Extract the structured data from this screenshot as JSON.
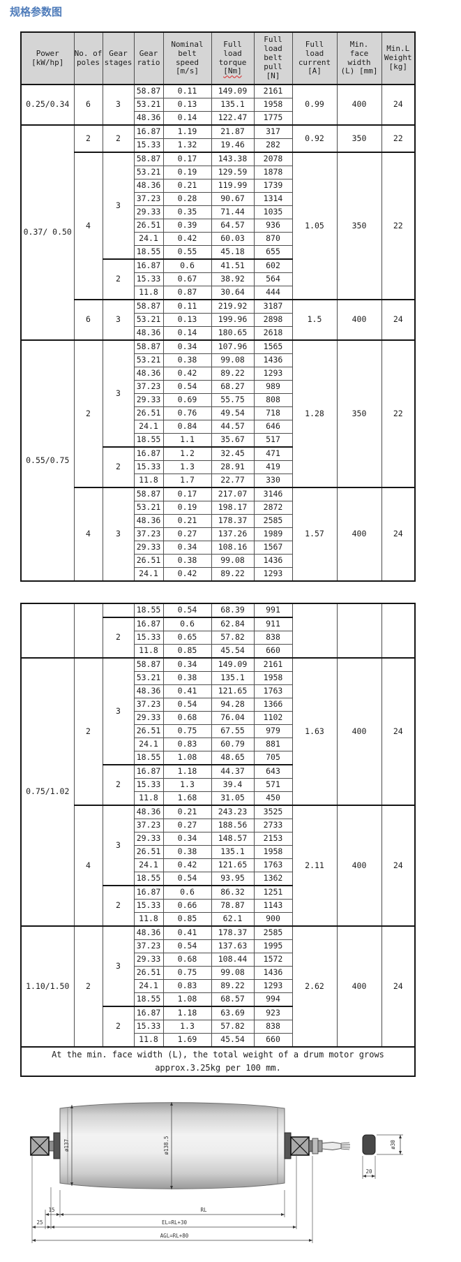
{
  "page": {
    "title": "规格参数图"
  },
  "colors": {
    "title": "#4f7cba",
    "header_bg": "#d5d5d5",
    "border": "#4d4d4d",
    "border_heavy": "#151515",
    "wavy_underline": "#d83a3a"
  },
  "columns": [
    {
      "key": "power",
      "lines": [
        "Power",
        "[kW/hp]"
      ]
    },
    {
      "key": "poles",
      "lines": [
        "No. of",
        "poles"
      ]
    },
    {
      "key": "stages",
      "lines": [
        "Gear",
        "stages"
      ]
    },
    {
      "key": "ratio",
      "lines": [
        "Gear",
        "ratio"
      ]
    },
    {
      "key": "speed",
      "lines": [
        "Nominal",
        "belt",
        "speed",
        "[m/s]"
      ]
    },
    {
      "key": "torque",
      "lines": [
        "Full",
        "load",
        "torque",
        "[Nm]"
      ],
      "wavy_line_index": 3
    },
    {
      "key": "pull",
      "lines": [
        "Full",
        "load",
        "belt",
        "pull",
        "[N]"
      ]
    },
    {
      "key": "current",
      "lines": [
        "Full",
        "load",
        "current",
        "[A]"
      ]
    },
    {
      "key": "face_width",
      "lines": [
        "Min.",
        "face",
        "width",
        "(L) [mm]"
      ]
    },
    {
      "key": "weight",
      "lines": [
        "Min.L",
        "Weight",
        "[kg]"
      ]
    }
  ],
  "tables": [
    {
      "name": "spec-table-1",
      "show_header": true,
      "groups": [
        {
          "power": "0.25/0.34",
          "pole_groups": [
            {
              "poles": "6",
              "current": "0.99",
              "face_width": "400",
              "weight": "24",
              "stage_groups": [
                {
                  "stages": "3",
                  "rows": [
                    [
                      "58.87",
                      "0.11",
                      "149.09",
                      "2161"
                    ],
                    [
                      "53.21",
                      "0.13",
                      "135.1",
                      "1958"
                    ],
                    [
                      "48.36",
                      "0.14",
                      "122.47",
                      "1775"
                    ]
                  ]
                }
              ]
            }
          ]
        },
        {
          "power": "0.37/ 0.50",
          "pole_groups": [
            {
              "poles": "2",
              "current": "0.92",
              "face_width": "350",
              "weight": "22",
              "stage_groups": [
                {
                  "stages": "2",
                  "rows": [
                    [
                      "16.87",
                      "1.19",
                      "21.87",
                      "317"
                    ],
                    [
                      "15.33",
                      "1.32",
                      "19.46",
                      "282"
                    ]
                  ]
                }
              ]
            },
            {
              "poles": "4",
              "current": "1.05",
              "face_width": "350",
              "weight": "22",
              "stage_groups": [
                {
                  "stages": "3",
                  "rows": [
                    [
                      "58.87",
                      "0.17",
                      "143.38",
                      "2078"
                    ],
                    [
                      "53.21",
                      "0.19",
                      "129.59",
                      "1878"
                    ],
                    [
                      "48.36",
                      "0.21",
                      "119.99",
                      "1739"
                    ],
                    [
                      "37.23",
                      "0.28",
                      "90.67",
                      "1314"
                    ],
                    [
                      "29.33",
                      "0.35",
                      "71.44",
                      "1035"
                    ],
                    [
                      "26.51",
                      "0.39",
                      "64.57",
                      "936"
                    ],
                    [
                      "24.1",
                      "0.42",
                      "60.03",
                      "870"
                    ],
                    [
                      "18.55",
                      "0.55",
                      "45.18",
                      "655"
                    ]
                  ]
                },
                {
                  "stages": "2",
                  "rows": [
                    [
                      "16.87",
                      "0.6",
                      "41.51",
                      "602"
                    ],
                    [
                      "15.33",
                      "0.67",
                      "38.92",
                      "564"
                    ],
                    [
                      "11.8",
                      "0.87",
                      "30.64",
                      "444"
                    ]
                  ]
                }
              ]
            },
            {
              "poles": "6",
              "current": "1.5",
              "face_width": "400",
              "weight": "24",
              "stage_groups": [
                {
                  "stages": "3",
                  "rows": [
                    [
                      "58.87",
                      "0.11",
                      "219.92",
                      "3187"
                    ],
                    [
                      "53.21",
                      "0.13",
                      "199.96",
                      "2898"
                    ],
                    [
                      "48.36",
                      "0.14",
                      "180.65",
                      "2618"
                    ]
                  ]
                }
              ]
            }
          ]
        },
        {
          "power": "0.55/0.75",
          "pole_groups": [
            {
              "poles": "2",
              "current": "1.28",
              "face_width": "350",
              "weight": "22",
              "stage_groups": [
                {
                  "stages": "3",
                  "rows": [
                    [
                      "58.87",
                      "0.34",
                      "107.96",
                      "1565"
                    ],
                    [
                      "53.21",
                      "0.38",
                      "99.08",
                      "1436"
                    ],
                    [
                      "48.36",
                      "0.42",
                      "89.22",
                      "1293"
                    ],
                    [
                      "37.23",
                      "0.54",
                      "68.27",
                      "989"
                    ],
                    [
                      "29.33",
                      "0.69",
                      "55.75",
                      "808"
                    ],
                    [
                      "26.51",
                      "0.76",
                      "49.54",
                      "718"
                    ],
                    [
                      "24.1",
                      "0.84",
                      "44.57",
                      "646"
                    ],
                    [
                      "18.55",
                      "1.1",
                      "35.67",
                      "517"
                    ]
                  ]
                },
                {
                  "stages": "2",
                  "rows": [
                    [
                      "16.87",
                      "1.2",
                      "32.45",
                      "471"
                    ],
                    [
                      "15.33",
                      "1.3",
                      "28.91",
                      "419"
                    ],
                    [
                      "11.8",
                      "1.7",
                      "22.77",
                      "330"
                    ]
                  ]
                }
              ]
            },
            {
              "poles": "4",
              "current": "1.57",
              "face_width": "400",
              "weight": "24",
              "stage_groups": [
                {
                  "stages": "3",
                  "rows": [
                    [
                      "58.87",
                      "0.17",
                      "217.07",
                      "3146"
                    ],
                    [
                      "53.21",
                      "0.19",
                      "198.17",
                      "2872"
                    ],
                    [
                      "48.36",
                      "0.21",
                      "178.37",
                      "2585"
                    ],
                    [
                      "37.23",
                      "0.27",
                      "137.26",
                      "1989"
                    ],
                    [
                      "29.33",
                      "0.34",
                      "108.16",
                      "1567"
                    ],
                    [
                      "26.51",
                      "0.38",
                      "99.08",
                      "1436"
                    ],
                    [
                      "24.1",
                      "0.42",
                      "89.22",
                      "1293"
                    ]
                  ]
                }
              ]
            }
          ]
        }
      ]
    },
    {
      "name": "spec-table-2",
      "show_header": false,
      "groups": [
        {
          "power": "",
          "pole_groups": [
            {
              "poles": "",
              "current": "",
              "face_width": "",
              "weight": "",
              "stage_groups": [
                {
                  "stages": "",
                  "rows": [
                    [
                      "18.55",
                      "0.54",
                      "68.39",
                      "991"
                    ]
                  ]
                },
                {
                  "stages": "2",
                  "rows": [
                    [
                      "16.87",
                      "0.6",
                      "62.84",
                      "911"
                    ],
                    [
                      "15.33",
                      "0.65",
                      "57.82",
                      "838"
                    ],
                    [
                      "11.8",
                      "0.85",
                      "45.54",
                      "660"
                    ]
                  ]
                }
              ]
            }
          ]
        },
        {
          "power": "0.75/1.02",
          "pole_groups": [
            {
              "poles": "2",
              "current": "1.63",
              "face_width": "400",
              "weight": "24",
              "stage_groups": [
                {
                  "stages": "3",
                  "rows": [
                    [
                      "58.87",
                      "0.34",
                      "149.09",
                      "2161"
                    ],
                    [
                      "53.21",
                      "0.38",
                      "135.1",
                      "1958"
                    ],
                    [
                      "48.36",
                      "0.41",
                      "121.65",
                      "1763"
                    ],
                    [
                      "37.23",
                      "0.54",
                      "94.28",
                      "1366"
                    ],
                    [
                      "29.33",
                      "0.68",
                      "76.04",
                      "1102"
                    ],
                    [
                      "26.51",
                      "0.75",
                      "67.55",
                      "979"
                    ],
                    [
                      "24.1",
                      "0.83",
                      "60.79",
                      "881"
                    ],
                    [
                      "18.55",
                      "1.08",
                      "48.65",
                      "705"
                    ]
                  ]
                },
                {
                  "stages": "2",
                  "rows": [
                    [
                      "16.87",
                      "1.18",
                      "44.37",
                      "643"
                    ],
                    [
                      "15.33",
                      "1.3",
                      "39.4",
                      "571"
                    ],
                    [
                      "11.8",
                      "1.68",
                      "31.05",
                      "450"
                    ]
                  ]
                }
              ]
            },
            {
              "poles": "4",
              "current": "2.11",
              "face_width": "400",
              "weight": "24",
              "stage_groups": [
                {
                  "stages": "3",
                  "rows": [
                    [
                      "48.36",
                      "0.21",
                      "243.23",
                      "3525"
                    ],
                    [
                      "37.23",
                      "0.27",
                      "188.56",
                      "2733"
                    ],
                    [
                      "29.33",
                      "0.34",
                      "148.57",
                      "2153"
                    ],
                    [
                      "26.51",
                      "0.38",
                      "135.1",
                      "1958"
                    ],
                    [
                      "24.1",
                      "0.42",
                      "121.65",
                      "1763"
                    ],
                    [
                      "18.55",
                      "0.54",
                      "93.95",
                      "1362"
                    ]
                  ]
                },
                {
                  "stages": "2",
                  "rows": [
                    [
                      "16.87",
                      "0.6",
                      "86.32",
                      "1251"
                    ],
                    [
                      "15.33",
                      "0.66",
                      "78.87",
                      "1143"
                    ],
                    [
                      "11.8",
                      "0.85",
                      "62.1",
                      "900"
                    ]
                  ]
                }
              ]
            }
          ]
        },
        {
          "power": "1.10/1.50",
          "pole_groups": [
            {
              "poles": "2",
              "current": "2.62",
              "face_width": "400",
              "weight": "24",
              "stage_groups": [
                {
                  "stages": "3",
                  "rows": [
                    [
                      "48.36",
                      "0.41",
                      "178.37",
                      "2585"
                    ],
                    [
                      "37.23",
                      "0.54",
                      "137.63",
                      "1995"
                    ],
                    [
                      "29.33",
                      "0.68",
                      "108.44",
                      "1572"
                    ],
                    [
                      "26.51",
                      "0.75",
                      "99.08",
                      "1436"
                    ],
                    [
                      "24.1",
                      "0.83",
                      "89.22",
                      "1293"
                    ],
                    [
                      "18.55",
                      "1.08",
                      "68.57",
                      "994"
                    ]
                  ]
                },
                {
                  "stages": "2",
                  "rows": [
                    [
                      "16.87",
                      "1.18",
                      "63.69",
                      "923"
                    ],
                    [
                      "15.33",
                      "1.3",
                      "57.82",
                      "838"
                    ],
                    [
                      "11.8",
                      "1.69",
                      "45.54",
                      "660"
                    ]
                  ]
                }
              ]
            }
          ]
        }
      ],
      "footnote": [
        "At the min. face width (L), the total weight of a drum motor grows",
        "approx.3.25kg per 100 mm."
      ]
    }
  ],
  "diagram": {
    "labels": {
      "left_diameter": "ø137",
      "center_diameter": "ø138.5",
      "dim_15": "15",
      "dim_rl": "RL",
      "dim_25": "25",
      "dim_el": "EL=RL+30",
      "dim_agl": "AGL=RL+80",
      "detail_diameter": "ø30",
      "detail_width": "20"
    }
  }
}
